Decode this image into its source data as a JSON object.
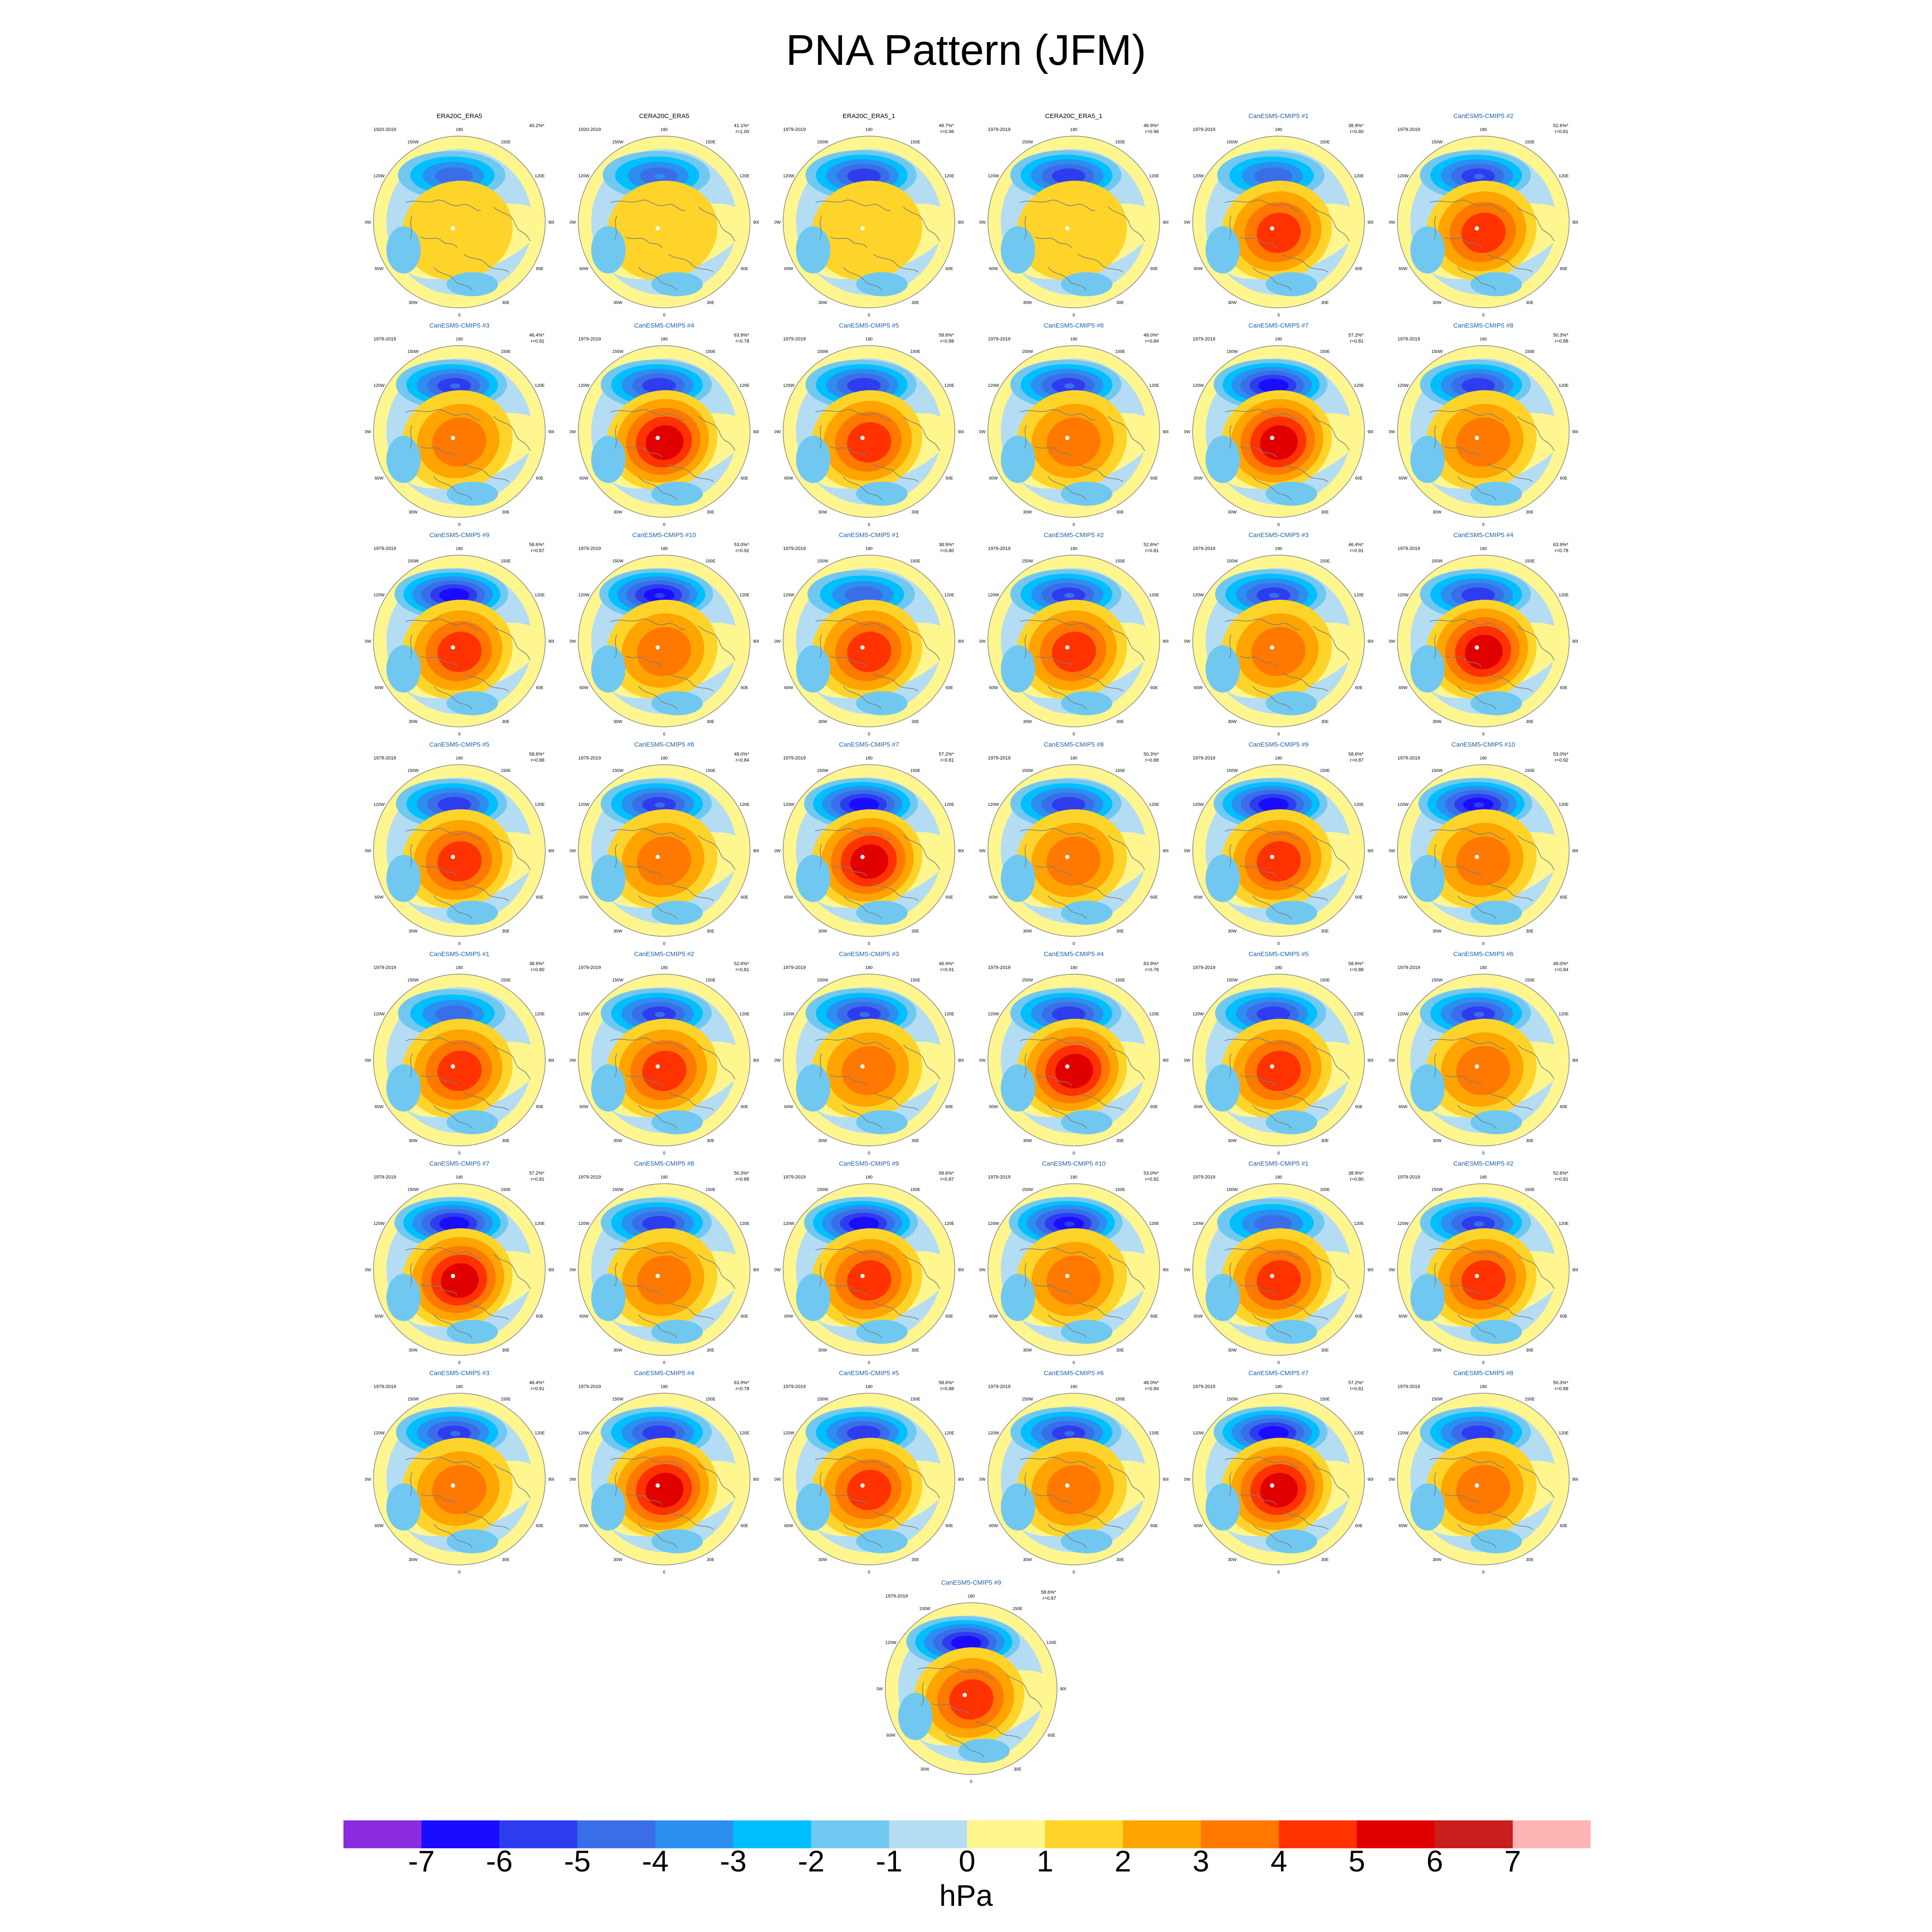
{
  "title": "PNA Pattern (JFM)",
  "colors": {
    "obs_title": "#000000",
    "model_title": "#1a5fa8",
    "coast": "#7d7d7d",
    "levels": [
      "#8a2be2",
      "#1a0dff",
      "#2e3cf0",
      "#3a6ee8",
      "#2a8ff0",
      "#00bfff",
      "#70c8f0",
      "#b4ddf4",
      "#fff68f",
      "#ffd42a",
      "#ffa400",
      "#ff7800",
      "#ff3200",
      "#e00000",
      "#c81e1e",
      "#ffb4b4"
    ]
  },
  "chart_data": {
    "type": "polar-contour-panel-grid",
    "field": "sea level pressure anomaly regressed on PNA index",
    "units": "hPa",
    "colorbar": {
      "ticks": [
        "-7",
        "-6",
        "-5",
        "-4",
        "-3",
        "-2",
        "-1",
        "0",
        "1",
        "2",
        "3",
        "4",
        "5",
        "6",
        "7"
      ],
      "unit_label": "hPa",
      "levels": [
        -7,
        -6,
        -5,
        -4,
        -3,
        -2,
        -1,
        0,
        1,
        2,
        3,
        4,
        5,
        6,
        7
      ]
    },
    "map_labels": {
      "lon": [
        "180",
        "150E",
        "120E",
        "90E",
        "60E",
        "30E",
        "0",
        "30W",
        "60W",
        "90W",
        "120W",
        "150W"
      ]
    },
    "panels": [
      {
        "title": "ERA20C_ERA5",
        "period": "1920-2019",
        "pct": "40.2%*",
        "r": "",
        "kind": "obs",
        "high": 1.2,
        "low": -4.2
      },
      {
        "title": "CERA20C_ERA5",
        "period": "1920-2019",
        "pct": "41.1%*",
        "r": "r=1.00",
        "kind": "obs",
        "high": 1.2,
        "low": -4.0
      },
      {
        "title": "ERA20C_ERA5_1",
        "period": "1979-2019",
        "pct": "46.7%*",
        "r": "r=0.96",
        "kind": "obs",
        "high": 1.5,
        "low": -5.3
      },
      {
        "title": "CERA20C_ERA5_1",
        "period": "1979-2019",
        "pct": "46.9%*",
        "r": "r=0.96",
        "kind": "obs",
        "high": 1.5,
        "low": -5.3
      },
      {
        "title": "CanESM5-CMIP5 #1",
        "period": "1979-2019",
        "pct": "38.9%*",
        "r": "r=0.80",
        "kind": "model",
        "high": 4.2,
        "low": -4.6
      },
      {
        "title": "CanESM5-CMIP5 #2",
        "period": "1979-2019",
        "pct": "52.6%*",
        "r": "r=0.81",
        "kind": "model",
        "high": 4.3,
        "low": -5.0
      },
      {
        "title": "CanESM5-CMIP5 #3",
        "period": "1979-2019",
        "pct": "46.4%*",
        "r": "r=0.91",
        "kind": "model",
        "high": 3.2,
        "low": -5.0
      },
      {
        "title": "CanESM5-CMIP5 #4",
        "period": "1979-2019",
        "pct": "63.9%*",
        "r": "r=0.78",
        "kind": "model",
        "high": 5.3,
        "low": -5.6
      },
      {
        "title": "CanESM5-CMIP5 #5",
        "period": "1979-2019",
        "pct": "58.6%*",
        "r": "r=0.88",
        "kind": "model",
        "high": 4.2,
        "low": -5.5
      },
      {
        "title": "CanESM5-CMIP5 #6",
        "period": "1979-2019",
        "pct": "48.0%*",
        "r": "r=0.84",
        "kind": "model",
        "high": 3.8,
        "low": -5.0
      },
      {
        "title": "CanESM5-CMIP5 #7",
        "period": "1979-2019",
        "pct": "57.2%*",
        "r": "r=0.81",
        "kind": "model",
        "high": 5.6,
        "low": -6.5
      },
      {
        "title": "CanESM5-CMIP5 #8",
        "period": "1979-2019",
        "pct": "50.3%*",
        "r": "r=0.88",
        "kind": "model",
        "high": 3.0,
        "low": -5.4
      },
      {
        "title": "CanESM5-CMIP5 #9",
        "period": "1979-2019",
        "pct": "58.6%*",
        "r": "r=0.87",
        "kind": "model",
        "high": 4.6,
        "low": -6.8
      },
      {
        "title": "CanESM5-CMIP5 #10",
        "period": "1979-2019",
        "pct": "53.0%*",
        "r": "r=0.92",
        "kind": "model",
        "high": 3.4,
        "low": -6.0
      },
      {
        "title": "CanESM5-CMIP5 #1",
        "period": "1979-2019",
        "pct": "38.9%*",
        "r": "r=0.80",
        "kind": "model",
        "high": 4.2,
        "low": -4.6
      },
      {
        "title": "CanESM5-CMIP5 #2",
        "period": "1979-2019",
        "pct": "52.6%*",
        "r": "r=0.81",
        "kind": "model",
        "high": 4.3,
        "low": -5.0
      },
      {
        "title": "CanESM5-CMIP5 #3",
        "period": "1979-2019",
        "pct": "46.4%*",
        "r": "r=0.91",
        "kind": "model",
        "high": 3.2,
        "low": -5.0
      },
      {
        "title": "CanESM5-CMIP5 #4",
        "period": "1979-2019",
        "pct": "63.9%*",
        "r": "r=0.78",
        "kind": "model",
        "high": 5.3,
        "low": -5.6
      },
      {
        "title": "CanESM5-CMIP5 #5",
        "period": "1979-2019",
        "pct": "58.6%*",
        "r": "r=0.88",
        "kind": "model",
        "high": 4.2,
        "low": -5.5
      },
      {
        "title": "CanESM5-CMIP5 #6",
        "period": "1979-2019",
        "pct": "48.0%*",
        "r": "r=0.84",
        "kind": "model",
        "high": 3.8,
        "low": -5.0
      },
      {
        "title": "CanESM5-CMIP5 #7",
        "period": "1979-2019",
        "pct": "57.2%*",
        "r": "r=0.81",
        "kind": "model",
        "high": 5.6,
        "low": -6.5
      },
      {
        "title": "CanESM5-CMIP5 #8",
        "period": "1979-2019",
        "pct": "50.3%*",
        "r": "r=0.88",
        "kind": "model",
        "high": 3.0,
        "low": -5.4
      },
      {
        "title": "CanESM5-CMIP5 #9",
        "period": "1979-2019",
        "pct": "58.6%*",
        "r": "r=0.87",
        "kind": "model",
        "high": 4.6,
        "low": -6.8
      },
      {
        "title": "CanESM5-CMIP5 #10",
        "period": "1979-2019",
        "pct": "53.0%*",
        "r": "r=0.92",
        "kind": "model",
        "high": 3.4,
        "low": -6.0
      },
      {
        "title": "CanESM5-CMIP5 #1",
        "period": "1979-2019",
        "pct": "38.9%*",
        "r": "r=0.80",
        "kind": "model",
        "high": 4.2,
        "low": -4.6
      },
      {
        "title": "CanESM5-CMIP5 #2",
        "period": "1979-2019",
        "pct": "52.6%*",
        "r": "r=0.81",
        "kind": "model",
        "high": 4.3,
        "low": -5.0
      },
      {
        "title": "CanESM5-CMIP5 #3",
        "period": "1979-2019",
        "pct": "46.4%*",
        "r": "r=0.91",
        "kind": "model",
        "high": 3.2,
        "low": -5.0
      },
      {
        "title": "CanESM5-CMIP5 #4",
        "period": "1979-2019",
        "pct": "63.9%*",
        "r": "r=0.78",
        "kind": "model",
        "high": 5.3,
        "low": -5.6
      },
      {
        "title": "CanESM5-CMIP5 #5",
        "period": "1979-2019",
        "pct": "58.6%*",
        "r": "r=0.88",
        "kind": "model",
        "high": 4.2,
        "low": -5.5
      },
      {
        "title": "CanESM5-CMIP5 #6",
        "period": "1979-2019",
        "pct": "48.0%*",
        "r": "r=0.84",
        "kind": "model",
        "high": 3.8,
        "low": -5.0
      },
      {
        "title": "CanESM5-CMIP5 #7",
        "period": "1979-2019",
        "pct": "57.2%*",
        "r": "r=0.81",
        "kind": "model",
        "high": 5.6,
        "low": -6.5
      },
      {
        "title": "CanESM5-CMIP5 #8",
        "period": "1979-2019",
        "pct": "50.3%*",
        "r": "r=0.88",
        "kind": "model",
        "high": 3.0,
        "low": -5.4
      },
      {
        "title": "CanESM5-CMIP5 #9",
        "period": "1979-2019",
        "pct": "58.6%*",
        "r": "r=0.87",
        "kind": "model",
        "high": 4.6,
        "low": -6.8
      },
      {
        "title": "CanESM5-CMIP5 #10",
        "period": "1979-2019",
        "pct": "53.0%*",
        "r": "r=0.92",
        "kind": "model",
        "high": 3.4,
        "low": -6.0
      },
      {
        "title": "CanESM5-CMIP5 #1",
        "period": "1979-2019",
        "pct": "38.9%*",
        "r": "r=0.80",
        "kind": "model",
        "high": 4.2,
        "low": -4.6
      },
      {
        "title": "CanESM5-CMIP5 #2",
        "period": "1979-2019",
        "pct": "52.6%*",
        "r": "r=0.81",
        "kind": "model",
        "high": 4.3,
        "low": -5.0
      },
      {
        "title": "CanESM5-CMIP5 #3",
        "period": "1979-2019",
        "pct": "46.4%*",
        "r": "r=0.91",
        "kind": "model",
        "high": 3.2,
        "low": -5.0
      },
      {
        "title": "CanESM5-CMIP5 #4",
        "period": "1979-2019",
        "pct": "63.9%*",
        "r": "r=0.78",
        "kind": "model",
        "high": 5.3,
        "low": -5.6
      },
      {
        "title": "CanESM5-CMIP5 #5",
        "period": "1979-2019",
        "pct": "58.6%*",
        "r": "r=0.88",
        "kind": "model",
        "high": 4.2,
        "low": -5.5
      },
      {
        "title": "CanESM5-CMIP5 #6",
        "period": "1979-2019",
        "pct": "48.0%*",
        "r": "r=0.84",
        "kind": "model",
        "high": 3.8,
        "low": -5.0
      },
      {
        "title": "CanESM5-CMIP5 #7",
        "period": "1979-2019",
        "pct": "57.2%*",
        "r": "r=0.81",
        "kind": "model",
        "high": 5.6,
        "low": -6.5
      },
      {
        "title": "CanESM5-CMIP5 #8",
        "period": "1979-2019",
        "pct": "50.3%*",
        "r": "r=0.88",
        "kind": "model",
        "high": 3.0,
        "low": -5.4
      },
      {
        "title": "CanESM5-CMIP5 #9",
        "period": "1979-2019",
        "pct": "58.6%*",
        "r": "r=0.87",
        "kind": "model",
        "high": 4.6,
        "low": -6.8
      }
    ]
  }
}
